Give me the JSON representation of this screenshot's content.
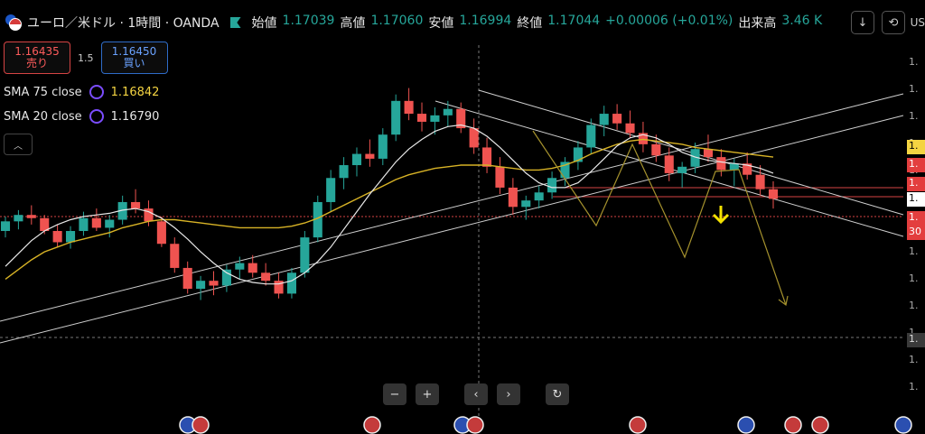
{
  "header": {
    "symbol": "ユーロ／米ドル · 1時間 · OANDA",
    "ohlc": [
      {
        "key": "始値",
        "value": "1.17039"
      },
      {
        "key": "高値",
        "value": "1.17060"
      },
      {
        "key": "安値",
        "value": "1.16994"
      },
      {
        "key": "終値",
        "value": "1.17044"
      }
    ],
    "change": "+0.00006 (+0.01%)",
    "volume_label": "出来高",
    "volume_value": "3.46 K",
    "currency": "US"
  },
  "trade": {
    "sell_price": "1.16435",
    "sell_label": "売り",
    "spread": "1.5",
    "buy_price": "1.16450",
    "buy_label": "買い"
  },
  "indicators": [
    {
      "name": "SMA 75 close",
      "value": "1.16842",
      "color": "#f4d442"
    },
    {
      "name": "SMA 20 close",
      "value": "1.16790",
      "color": "#e6e6e6"
    }
  ],
  "price_axis": {
    "ticks": [
      "1.",
      "1.",
      "1.",
      "1.",
      "1.",
      "1.",
      "1.",
      "1.",
      "1.",
      "1.",
      "1.",
      "1.",
      "1."
    ],
    "tags": [
      {
        "text": "1.",
        "style": "tag"
      },
      {
        "text": "1.",
        "style": "red"
      },
      {
        "text": "1.",
        "style": "red"
      },
      {
        "text": "1.",
        "style": "white"
      },
      {
        "text": "1.",
        "style": "red"
      },
      {
        "text": "30",
        "style": "red"
      },
      {
        "text": "1.",
        "style": "dark"
      }
    ]
  },
  "colors": {
    "up": "#26a69a",
    "down": "#ef5350",
    "sma75": "#d8b326",
    "sma20": "#e8e8e8",
    "trend": "#cfcfcf",
    "arrow": "#f4e200",
    "forecast": "#a4912d"
  },
  "chart_data": {
    "type": "candlestick",
    "series": [
      {
        "name": "SMA 75 close"
      },
      {
        "name": "SMA 20 close"
      }
    ],
    "candles": [
      [
        1.169,
        1.1699,
        1.1686,
        1.1696
      ],
      [
        1.1696,
        1.1703,
        1.1691,
        1.17
      ],
      [
        1.17,
        1.1706,
        1.1694,
        1.1698
      ],
      [
        1.1698,
        1.17,
        1.1688,
        1.169
      ],
      [
        1.169,
        1.1694,
        1.168,
        1.1683
      ],
      [
        1.1683,
        1.1693,
        1.1679,
        1.169
      ],
      [
        1.169,
        1.1702,
        1.1687,
        1.1698
      ],
      [
        1.1698,
        1.1704,
        1.169,
        1.1692
      ],
      [
        1.1692,
        1.17,
        1.1686,
        1.1697
      ],
      [
        1.1697,
        1.1712,
        1.1694,
        1.1708
      ],
      [
        1.1708,
        1.1716,
        1.1701,
        1.1704
      ],
      [
        1.1704,
        1.1709,
        1.1693,
        1.1696
      ],
      [
        1.1696,
        1.1699,
        1.168,
        1.1682
      ],
      [
        1.1682,
        1.1686,
        1.1664,
        1.1667
      ],
      [
        1.1667,
        1.1671,
        1.1651,
        1.1654
      ],
      [
        1.1654,
        1.1662,
        1.1647,
        1.1659
      ],
      [
        1.1659,
        1.1665,
        1.165,
        1.1656
      ],
      [
        1.1656,
        1.1669,
        1.1652,
        1.1666
      ],
      [
        1.1666,
        1.1674,
        1.166,
        1.167
      ],
      [
        1.167,
        1.1675,
        1.1661,
        1.1664
      ],
      [
        1.1664,
        1.167,
        1.1656,
        1.1659
      ],
      [
        1.1659,
        1.1664,
        1.1648,
        1.1651
      ],
      [
        1.1651,
        1.1667,
        1.1648,
        1.1664
      ],
      [
        1.1664,
        1.169,
        1.1661,
        1.1686
      ],
      [
        1.1686,
        1.1712,
        1.1683,
        1.1708
      ],
      [
        1.1708,
        1.1728,
        1.1702,
        1.1723
      ],
      [
        1.1723,
        1.1736,
        1.1716,
        1.1731
      ],
      [
        1.1731,
        1.1742,
        1.1724,
        1.1738
      ],
      [
        1.1738,
        1.1747,
        1.173,
        1.1735
      ],
      [
        1.1735,
        1.1754,
        1.1731,
        1.175
      ],
      [
        1.175,
        1.1775,
        1.1746,
        1.1771
      ],
      [
        1.1771,
        1.1779,
        1.1759,
        1.1763
      ],
      [
        1.1763,
        1.177,
        1.1752,
        1.1758
      ],
      [
        1.1758,
        1.1767,
        1.175,
        1.1762
      ],
      [
        1.1762,
        1.1771,
        1.1755,
        1.1766
      ],
      [
        1.1766,
        1.177,
        1.1751,
        1.1754
      ],
      [
        1.1754,
        1.176,
        1.1738,
        1.1742
      ],
      [
        1.1742,
        1.1748,
        1.1726,
        1.173
      ],
      [
        1.173,
        1.1736,
        1.1713,
        1.1717
      ],
      [
        1.1717,
        1.1723,
        1.17,
        1.1705
      ],
      [
        1.1705,
        1.1712,
        1.1697,
        1.1709
      ],
      [
        1.1709,
        1.1718,
        1.1704,
        1.1714
      ],
      [
        1.1714,
        1.1727,
        1.171,
        1.1723
      ],
      [
        1.1723,
        1.1736,
        1.1718,
        1.1733
      ],
      [
        1.1733,
        1.1746,
        1.1728,
        1.1742
      ],
      [
        1.1742,
        1.176,
        1.1738,
        1.1756
      ],
      [
        1.1756,
        1.1768,
        1.1749,
        1.1763
      ],
      [
        1.1763,
        1.1769,
        1.1753,
        1.1757
      ],
      [
        1.1757,
        1.1765,
        1.1748,
        1.1751
      ],
      [
        1.1751,
        1.1758,
        1.1739,
        1.1744
      ],
      [
        1.1744,
        1.175,
        1.1733,
        1.1737
      ],
      [
        1.1737,
        1.1742,
        1.1721,
        1.1726
      ],
      [
        1.1726,
        1.1733,
        1.1717,
        1.173
      ],
      [
        1.173,
        1.1745,
        1.1726,
        1.1741
      ],
      [
        1.1741,
        1.175,
        1.1733,
        1.1736
      ],
      [
        1.1736,
        1.1741,
        1.1724,
        1.1728
      ],
      [
        1.1728,
        1.1735,
        1.1718,
        1.1732
      ],
      [
        1.1732,
        1.1739,
        1.1722,
        1.1725
      ],
      [
        1.1725,
        1.1731,
        1.1712,
        1.1716
      ],
      [
        1.1716,
        1.1721,
        1.1704,
        1.171
      ]
    ],
    "sma75": [
      1.166,
      1.1666,
      1.1672,
      1.1677,
      1.168,
      1.1683,
      1.1685,
      1.1687,
      1.1689,
      1.1692,
      1.1694,
      1.1696,
      1.1697,
      1.1697,
      1.1696,
      1.1695,
      1.1694,
      1.1693,
      1.1692,
      1.1692,
      1.1692,
      1.1692,
      1.1693,
      1.1695,
      1.1698,
      1.1702,
      1.1706,
      1.171,
      1.1714,
      1.1718,
      1.1722,
      1.1725,
      1.1727,
      1.1729,
      1.173,
      1.1731,
      1.1731,
      1.1731,
      1.173,
      1.1729,
      1.1728,
      1.1728,
      1.1729,
      1.1731,
      1.1734,
      1.1738,
      1.1741,
      1.1744,
      1.1746,
      1.1747,
      1.1746,
      1.1745,
      1.1744,
      1.1742,
      1.1741,
      1.174,
      1.1739,
      1.1738,
      1.1737,
      1.1736
    ],
    "sma20": [
      1.1668,
      1.1676,
      1.1684,
      1.169,
      1.1694,
      1.1697,
      1.1699,
      1.17,
      1.1701,
      1.1703,
      1.1704,
      1.1702,
      1.1698,
      1.1692,
      1.1685,
      1.1677,
      1.167,
      1.1664,
      1.166,
      1.1658,
      1.1657,
      1.1657,
      1.1659,
      1.1664,
      1.1671,
      1.168,
      1.1691,
      1.1702,
      1.1713,
      1.1723,
      1.1733,
      1.1741,
      1.1747,
      1.1752,
      1.1755,
      1.1756,
      1.1754,
      1.1749,
      1.1742,
      1.1734,
      1.1726,
      1.172,
      1.1717,
      1.1717,
      1.172,
      1.1727,
      1.1735,
      1.1743,
      1.1748,
      1.175,
      1.1748,
      1.1744,
      1.1739,
      1.1736,
      1.1734,
      1.1733,
      1.1732,
      1.1731,
      1.1729,
      1.1726
    ]
  }
}
